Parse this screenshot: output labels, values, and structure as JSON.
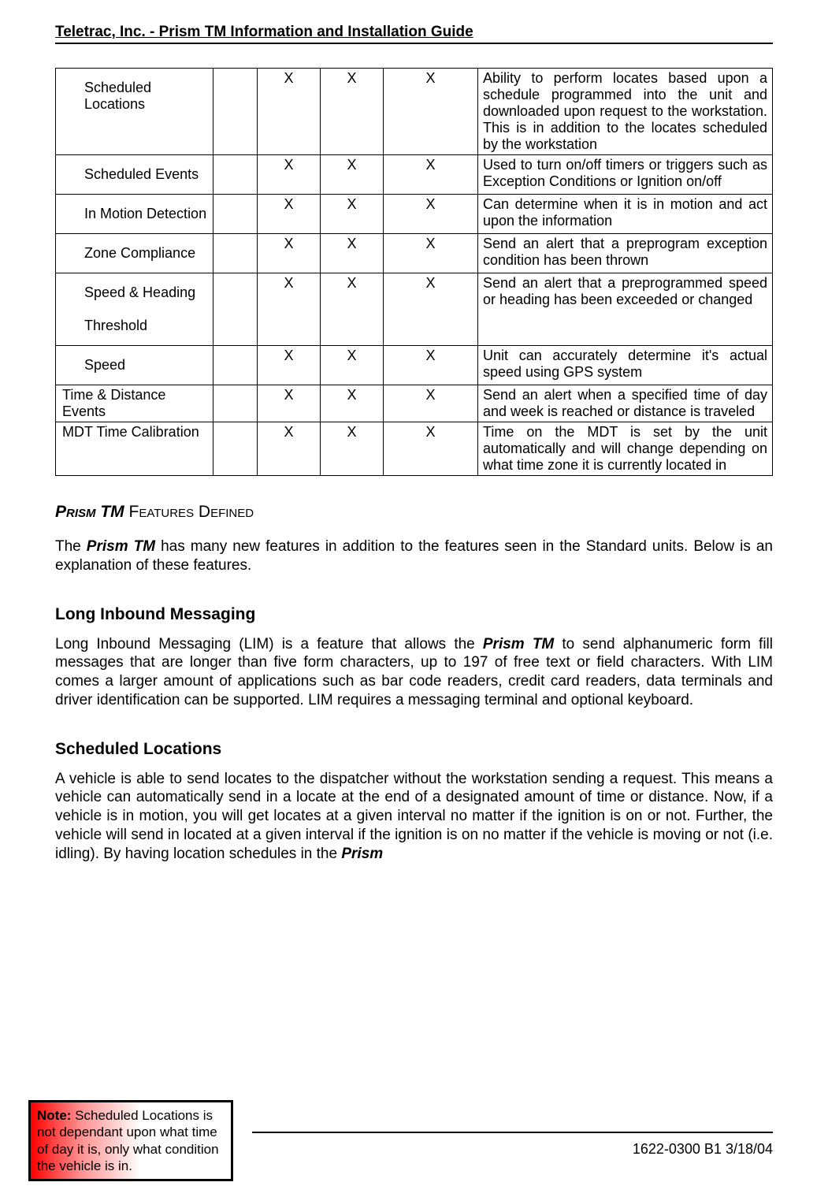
{
  "header": "Teletrac, Inc.  -  Prism TM Information and Installation Guide",
  "table": {
    "rows": [
      {
        "feature": "Scheduled Locations",
        "indented": true,
        "c1": "",
        "c2": "X",
        "c3": "X",
        "c4": "X",
        "desc": "Ability to perform locates based upon a schedule programmed into the unit and downloaded upon request to the workstation.  This is in addition to the locates scheduled by the workstation"
      },
      {
        "feature": "Scheduled Events",
        "indented": true,
        "c1": "",
        "c2": "X",
        "c3": "X",
        "c4": "X",
        "desc": "Used to turn on/off timers or triggers such as Exception Conditions or Ignition on/off"
      },
      {
        "feature": "In Motion Detection",
        "indented": true,
        "c1": "",
        "c2": "X",
        "c3": "X",
        "c4": "X",
        "desc": "Can determine when it is in motion and act upon the information"
      },
      {
        "feature": "Zone Compliance",
        "indented": true,
        "c1": "",
        "c2": "X",
        "c3": "X",
        "c4": "X",
        "desc": "Send an alert that a preprogram exception condition has been thrown"
      },
      {
        "feature": "Speed & Heading\n\nThreshold",
        "indented": true,
        "c1": "",
        "c2": "X",
        "c3": "X",
        "c4": "X",
        "desc": "Send an alert that a preprogrammed speed or heading has been exceeded or changed"
      },
      {
        "feature": "Speed",
        "indented": true,
        "c1": "",
        "c2": "X",
        "c3": "X",
        "c4": "X",
        "desc": "Unit can accurately determine it's actual speed using GPS system"
      },
      {
        "feature": "Time & Distance Events",
        "indented": false,
        "c1": "",
        "c2": "X",
        "c3": "X",
        "c4": "X",
        "desc": "Send an alert when a specified time of day and week is reached or distance is traveled"
      },
      {
        "feature": "MDT Time Calibration",
        "indented": false,
        "c1": "",
        "c2": "X",
        "c3": "X",
        "c4": "X",
        "desc": "Time on the MDT is set by the unit automatically and will change depending on what time zone it is currently located in"
      }
    ]
  },
  "section_heading_italic": "Prism TM",
  "section_heading_rest": " Features Defined",
  "intro_before": "The ",
  "intro_bold": "Prism TM",
  "intro_after": " has many new features in addition to the features seen in the Standard units.  Below is an explanation of these features.",
  "lim_heading": "Long Inbound Messaging",
  "lim_before": "Long Inbound Messaging (LIM) is a feature that allows the ",
  "lim_bold": "Prism TM",
  "lim_after": " to send alphanumeric form fill messages that are longer than five form characters, up to 197 of free text or field characters.  With LIM comes a larger amount of applications such as bar code readers, credit card readers, data terminals and driver identification can be supported.  LIM requires a messaging terminal and optional keyboard.",
  "sched_heading": "Scheduled Locations",
  "sched_before": "A vehicle is able to send locates to the dispatcher without the workstation sending a request.  This means a vehicle can automatically send in a locate at the end of a designated amount of time or distance.  Now, if a vehicle is in motion, you will get locates at a given interval no matter if the ignition is on or not.  Further, the vehicle will send in located at a given interval if the ignition is on no matter if the vehicle is moving or not (i.e. idling).  By having location schedules in the ",
  "sched_bold": "Prism",
  "note_label": "Note:",
  "note_text": "  Scheduled Locations is not dependant upon what time of day it is, only what condition the vehicle is in.",
  "footer": "1622-0300 B1 3/18/04",
  "colors": {
    "text": "#000000",
    "background": "#ffffff",
    "note_gradient_start": "#ff0000",
    "note_border": "#000000"
  }
}
